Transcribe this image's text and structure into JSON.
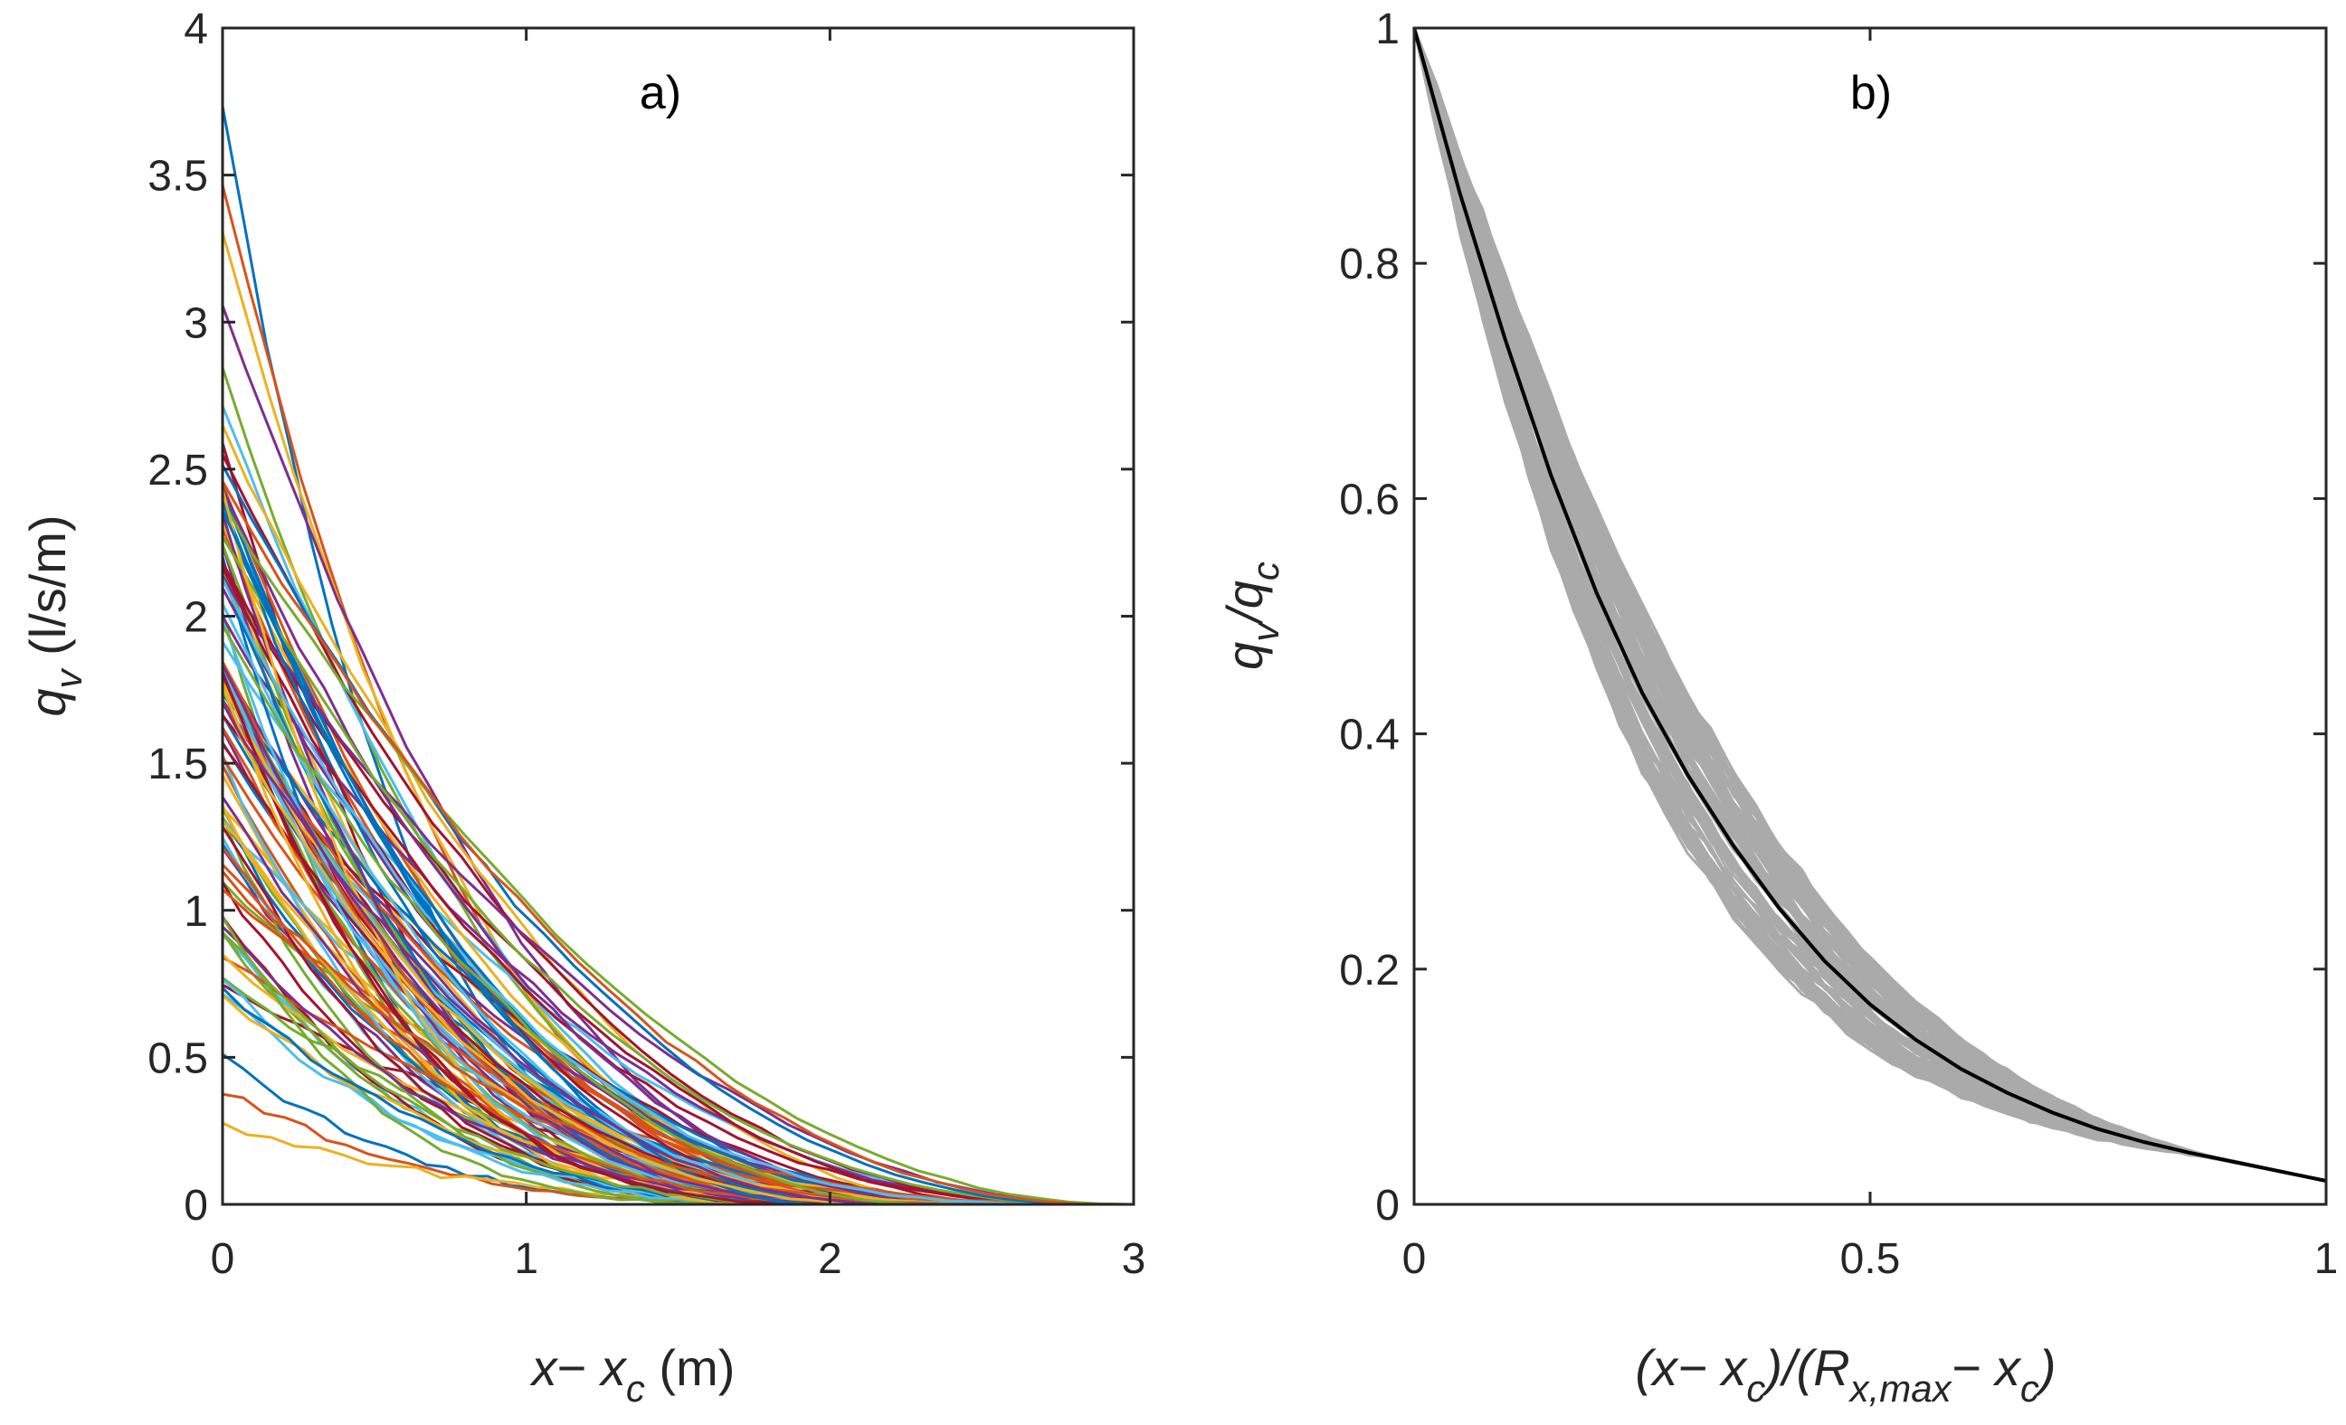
{
  "colors": {
    "axis": "#262626",
    "gray_curves": "#aaaaaa",
    "fit_curve": "#000000",
    "palette": [
      "#0072BD",
      "#D95319",
      "#EDB120",
      "#7E2F8E",
      "#77AC30",
      "#4DBEEE",
      "#A2142F"
    ]
  },
  "chart_data": [
    {
      "type": "line",
      "panel_label": "a)",
      "xlabel": {
        "var": "x",
        "minus": "− ",
        "sub_base": "x",
        "sub": "c",
        "unit": " (m)"
      },
      "ylabel": {
        "var": "q",
        "sub": "v",
        "unit": " (l/s/m)"
      },
      "xlim": [
        0,
        3
      ],
      "ylim": [
        0,
        4
      ],
      "xticks": [
        "0",
        "1",
        "2",
        "3"
      ],
      "yticks": [
        "0",
        "0.5",
        "1",
        "1.5",
        "2",
        "2.5",
        "3",
        "3.5",
        "4"
      ],
      "series_description": "about 100 measured profiles, q_v(0) between 0.27 and 3.73 l/s/m, each decaying to ~0 by x−x_c ≈ 2–3 m",
      "profile_model": {
        "x_end_range": [
          1.9,
          3.0
        ],
        "q0_highlights": [
          3.73,
          3.48,
          3.3,
          3.06,
          2.85,
          2.72,
          2.6,
          2.45,
          2.3,
          2.2,
          2.1,
          2.0,
          1.9,
          1.8,
          1.65,
          1.5,
          1.35,
          1.22,
          1.1,
          0.93,
          0.76,
          0.5,
          0.39,
          0.27
        ]
      }
    },
    {
      "type": "line",
      "panel_label": "b)",
      "xlabel": {
        "open": "(",
        "var": "x",
        "minus": "− ",
        "sub_base": "x",
        "sub": "c",
        "mid": ")/(",
        "r": "R",
        "r_sub": "x,max",
        "minus2": "− ",
        "x2": "x",
        "x2_sub": "c",
        "close": ")"
      },
      "ylabel": {
        "var": "q",
        "sub": "v",
        "slash": "/",
        "var2": "q",
        "sub2": "c"
      },
      "xlim": [
        0,
        1
      ],
      "ylim": [
        0,
        1
      ],
      "xticks": [
        "0",
        "0.5",
        "1"
      ],
      "yticks": [
        "0",
        "0.2",
        "0.4",
        "0.6",
        "0.8",
        "1"
      ],
      "series_description": "gray: ~100 normalised profiles; black: fitted mean curve",
      "fit_curve": {
        "name": "fit",
        "x": [
          0,
          0.05,
          0.1,
          0.15,
          0.2,
          0.25,
          0.3,
          0.35,
          0.4,
          0.45,
          0.5,
          0.55,
          0.6,
          0.65,
          0.7,
          0.75,
          0.8,
          0.85,
          0.9,
          0.95,
          1.0
        ],
        "y": [
          1.0,
          0.86,
          0.735,
          0.62,
          0.52,
          0.435,
          0.365,
          0.305,
          0.252,
          0.207,
          0.17,
          0.14,
          0.115,
          0.095,
          0.078,
          0.064,
          0.053,
          0.044,
          0.036,
          0.028,
          0.02
        ]
      }
    }
  ]
}
